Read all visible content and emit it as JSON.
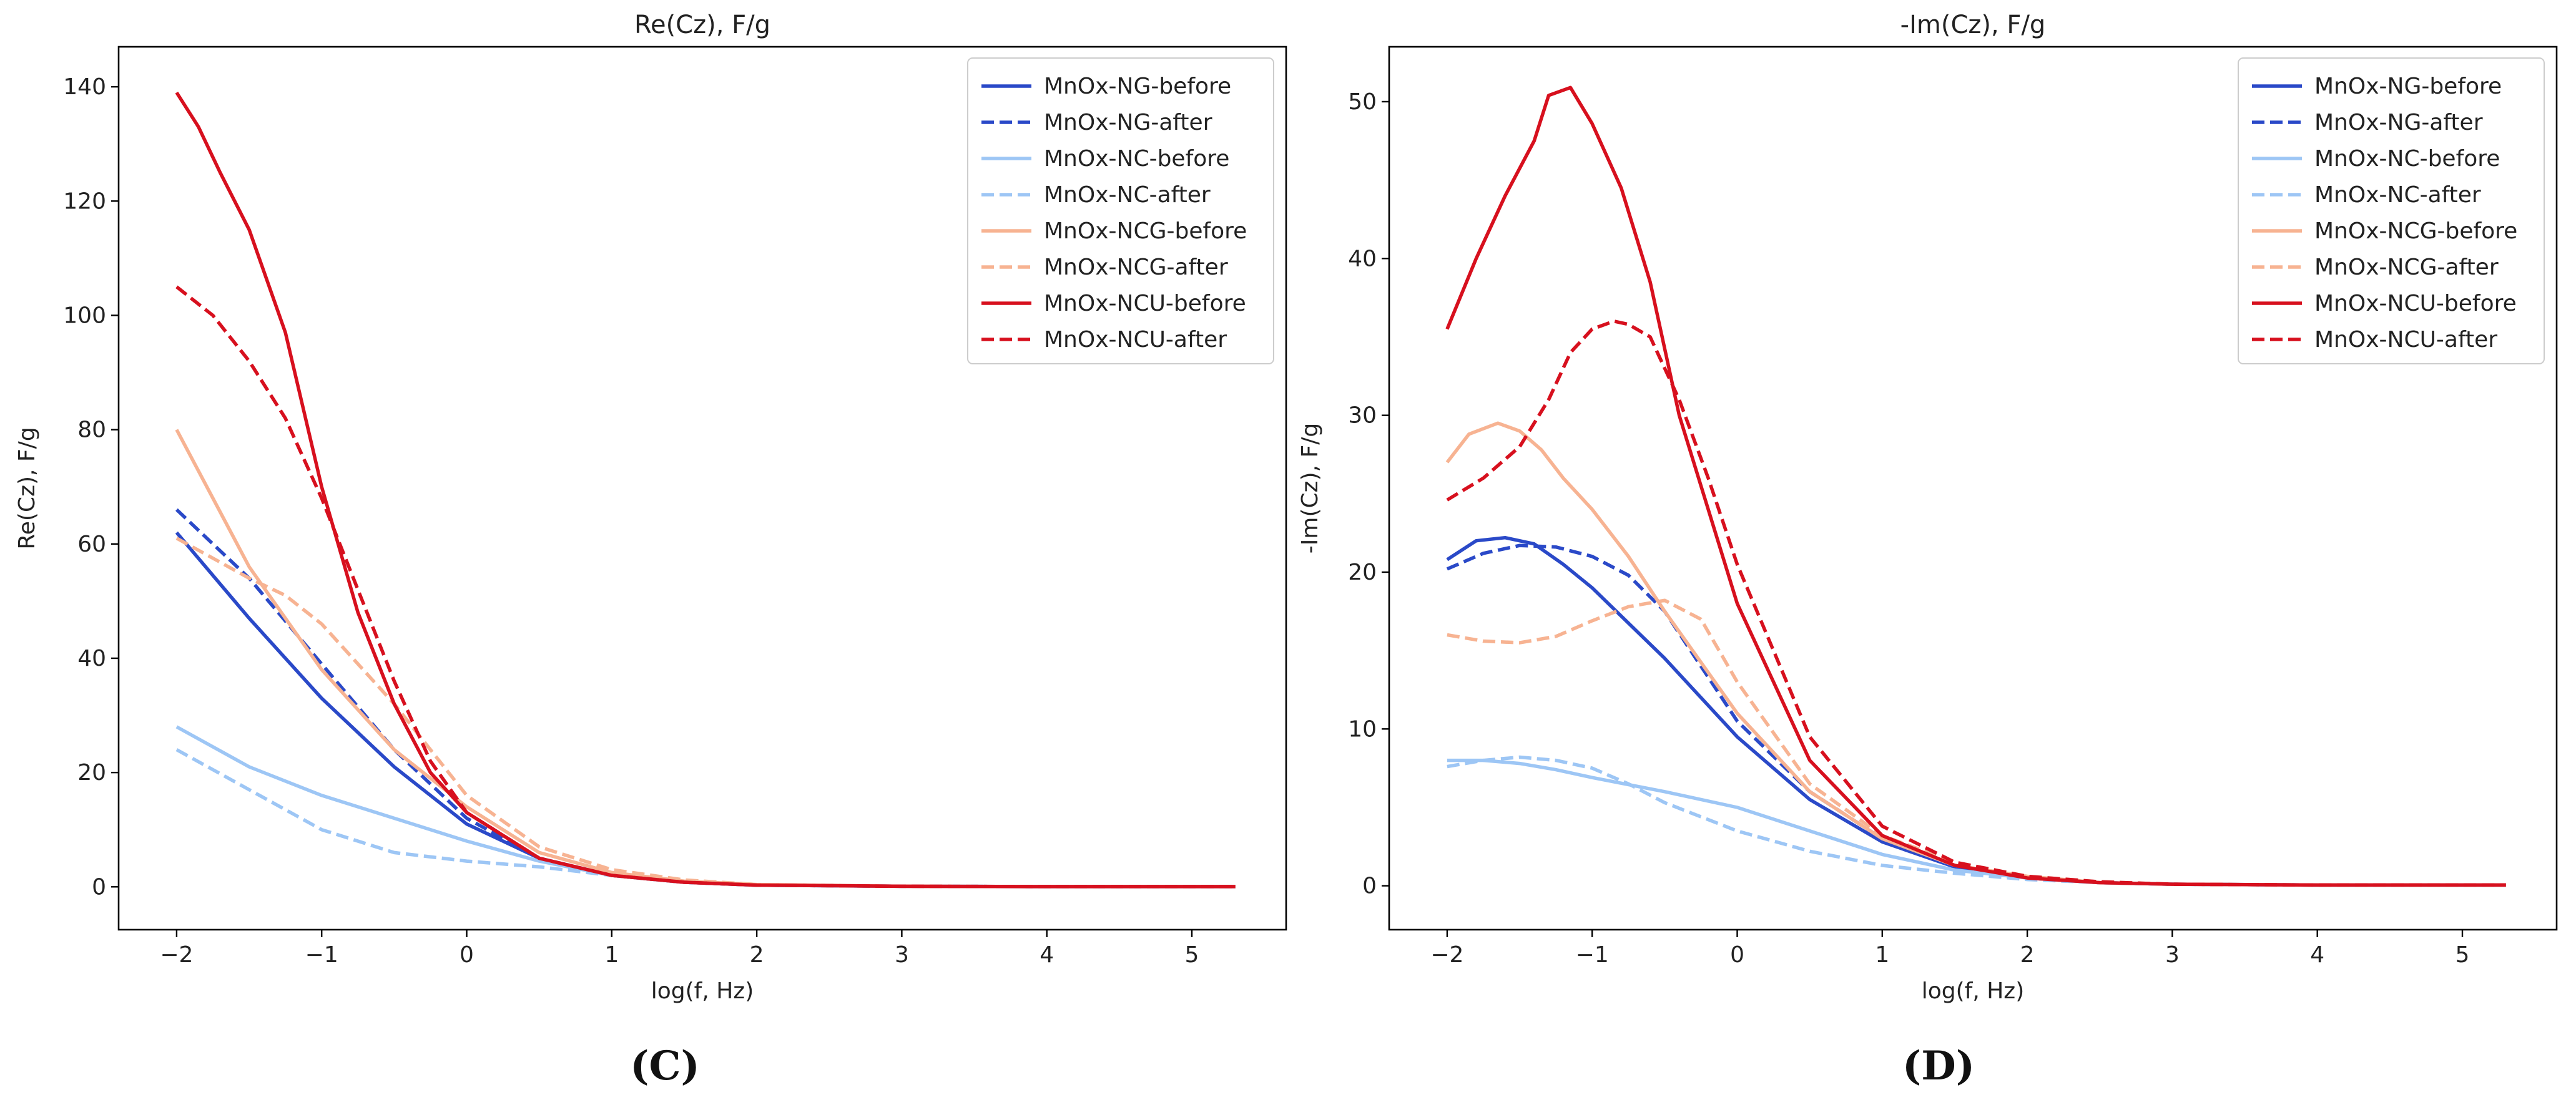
{
  "colors": {
    "NG": "#2a49c8",
    "NC": "#9dc6f5",
    "NCG": "#f7b392",
    "NCU": "#d7101e"
  },
  "legend_labels": [
    "MnOx-NG-before",
    "MnOx-NG-after",
    "MnOx-NC-before",
    "MnOx-NC-after",
    "MnOx-NCG-before",
    "MnOx-NCG-after",
    "MnOx-NCU-before",
    "MnOx-NCU-after"
  ],
  "chart_data": [
    {
      "type": "line",
      "panel_label": "(C)",
      "title": "Re(Cz), F/g",
      "xlabel": "log(f, Hz)",
      "ylabel": "Re(Cz), F/g",
      "xlim": [
        -2.4,
        5.65
      ],
      "ylim": [
        -7.5,
        147
      ],
      "xticks": [
        -2,
        -1,
        0,
        1,
        2,
        3,
        4,
        5
      ],
      "xtick_labels": [
        "−2",
        "−1",
        "0",
        "1",
        "2",
        "3",
        "4",
        "5"
      ],
      "yticks": [
        0,
        20,
        40,
        60,
        80,
        100,
        120,
        140
      ],
      "ytick_labels": [
        "0",
        "20",
        "40",
        "60",
        "80",
        "100",
        "120",
        "140"
      ],
      "legend_position": "top-right",
      "series": [
        {
          "name": "MnOx-NG-before",
          "color_key": "NG",
          "dash": "solid",
          "x": [
            -2,
            -1.5,
            -1,
            -0.5,
            0,
            0.5,
            1,
            1.5,
            2,
            3,
            4,
            5.3
          ],
          "y": [
            62,
            47,
            33,
            21,
            11,
            5,
            2,
            0.8,
            0.3,
            0.1,
            0.05,
            0.05
          ]
        },
        {
          "name": "MnOx-NG-after",
          "color_key": "NG",
          "dash": "dashed",
          "x": [
            -2,
            -1.5,
            -1,
            -0.5,
            0,
            0.5,
            1,
            1.5,
            2,
            3,
            4,
            5.3
          ],
          "y": [
            66,
            54,
            39,
            24,
            12,
            5,
            2,
            0.8,
            0.3,
            0.1,
            0.05,
            0.05
          ]
        },
        {
          "name": "MnOx-NC-before",
          "color_key": "NC",
          "dash": "solid",
          "x": [
            -2,
            -1.5,
            -1,
            -0.5,
            0,
            0.5,
            1,
            1.5,
            2,
            3,
            4,
            5.3
          ],
          "y": [
            28,
            21,
            16,
            12,
            8,
            4.5,
            2,
            0.8,
            0.3,
            0.1,
            0.05,
            0.05
          ]
        },
        {
          "name": "MnOx-NC-after",
          "color_key": "NC",
          "dash": "dashed",
          "x": [
            -2,
            -1.5,
            -1,
            -0.5,
            0,
            0.5,
            1,
            1.5,
            2,
            3,
            4,
            5.3
          ],
          "y": [
            24,
            17,
            10,
            6,
            4.5,
            3.5,
            2,
            0.8,
            0.3,
            0.1,
            0.05,
            0.05
          ]
        },
        {
          "name": "MnOx-NCG-before",
          "color_key": "NCG",
          "dash": "solid",
          "x": [
            -2,
            -1.5,
            -1,
            -0.5,
            0,
            0.5,
            1,
            1.5,
            2,
            3,
            4,
            5.3
          ],
          "y": [
            80,
            56,
            38,
            24,
            14,
            6,
            2.5,
            1,
            0.4,
            0.1,
            0.05,
            0.05
          ]
        },
        {
          "name": "MnOx-NCG-after",
          "color_key": "NCG",
          "dash": "dashed",
          "x": [
            -2,
            -1.5,
            -1.25,
            -1,
            -0.5,
            0,
            0.5,
            1,
            1.5,
            2,
            3,
            4,
            5.3
          ],
          "y": [
            61,
            54,
            51,
            46,
            32,
            16,
            7,
            3,
            1.2,
            0.4,
            0.1,
            0.05,
            0.05
          ]
        },
        {
          "name": "MnOx-NCU-before",
          "color_key": "NCU",
          "dash": "solid",
          "x": [
            -2,
            -1.85,
            -1.7,
            -1.5,
            -1.25,
            -1,
            -0.75,
            -0.5,
            -0.25,
            0,
            0.5,
            1,
            1.5,
            2,
            3,
            4,
            5.3
          ],
          "y": [
            139,
            133,
            125,
            115,
            97,
            70,
            48,
            32,
            20,
            13,
            5,
            2,
            0.8,
            0.3,
            0.1,
            0.05,
            0.05
          ]
        },
        {
          "name": "MnOx-NCU-after",
          "color_key": "NCU",
          "dash": "dashed",
          "x": [
            -2,
            -1.75,
            -1.5,
            -1.25,
            -1,
            -0.75,
            -0.5,
            -0.25,
            0,
            0.5,
            1,
            1.5,
            2,
            3,
            4,
            5.3
          ],
          "y": [
            105,
            100,
            92,
            82,
            68,
            52,
            36,
            22,
            13,
            5,
            2,
            0.8,
            0.3,
            0.1,
            0.05,
            0.05
          ]
        }
      ]
    },
    {
      "type": "line",
      "panel_label": "(D)",
      "title": "-Im(Cz), F/g",
      "xlabel": "log(f, Hz)",
      "ylabel": "-Im(Cz), F/g",
      "xlim": [
        -2.4,
        5.65
      ],
      "ylim": [
        -2.8,
        53.5
      ],
      "xticks": [
        -2,
        -1,
        0,
        1,
        2,
        3,
        4,
        5
      ],
      "xtick_labels": [
        "−2",
        "−1",
        "0",
        "1",
        "2",
        "3",
        "4",
        "5"
      ],
      "yticks": [
        0,
        10,
        20,
        30,
        40,
        50
      ],
      "ytick_labels": [
        "0",
        "10",
        "20",
        "30",
        "40",
        "50"
      ],
      "legend_position": "top-right",
      "series": [
        {
          "name": "MnOx-NG-before",
          "color_key": "NG",
          "dash": "solid",
          "x": [
            -2,
            -1.8,
            -1.6,
            -1.4,
            -1.2,
            -1,
            -0.5,
            0,
            0.5,
            1,
            1.5,
            2,
            2.5,
            3,
            4,
            5.3
          ],
          "y": [
            20.8,
            22,
            22.2,
            21.8,
            20.5,
            19,
            14.5,
            9.5,
            5.5,
            2.8,
            1.2,
            0.5,
            0.2,
            0.1,
            0.05,
            0.05
          ]
        },
        {
          "name": "MnOx-NG-after",
          "color_key": "NG",
          "dash": "dashed",
          "x": [
            -2,
            -1.75,
            -1.5,
            -1.25,
            -1,
            -0.75,
            -0.5,
            0,
            0.5,
            1,
            1.5,
            2,
            2.5,
            3,
            4,
            5.3
          ],
          "y": [
            20.2,
            21.2,
            21.7,
            21.6,
            21,
            19.8,
            17.5,
            10.5,
            6,
            3,
            1.3,
            0.5,
            0.2,
            0.1,
            0.05,
            0.05
          ]
        },
        {
          "name": "MnOx-NC-before",
          "color_key": "NC",
          "dash": "solid",
          "x": [
            -2,
            -1.75,
            -1.5,
            -1.25,
            -1,
            -0.5,
            0,
            0.5,
            1,
            1.5,
            2,
            2.5,
            3,
            4,
            5.3
          ],
          "y": [
            8,
            8,
            7.8,
            7.4,
            6.9,
            6,
            5,
            3.5,
            2,
            1,
            0.5,
            0.2,
            0.1,
            0.05,
            0.05
          ]
        },
        {
          "name": "MnOx-NC-after",
          "color_key": "NC",
          "dash": "dashed",
          "x": [
            -2,
            -1.75,
            -1.5,
            -1.25,
            -1,
            -0.75,
            -0.5,
            0,
            0.5,
            1,
            1.5,
            2,
            2.5,
            3,
            4,
            5.3
          ],
          "y": [
            7.6,
            8,
            8.2,
            8,
            7.5,
            6.5,
            5.3,
            3.5,
            2.2,
            1.3,
            0.8,
            0.4,
            0.2,
            0.1,
            0.05,
            0.05
          ]
        },
        {
          "name": "MnOx-NCG-before",
          "color_key": "NCG",
          "dash": "solid",
          "x": [
            -2,
            -1.85,
            -1.65,
            -1.5,
            -1.35,
            -1.2,
            -1,
            -0.75,
            -0.5,
            0,
            0.5,
            1,
            1.5,
            2,
            2.5,
            3,
            4,
            5.3
          ],
          "y": [
            27,
            28.8,
            29.5,
            29,
            27.8,
            26,
            24,
            21,
            17.5,
            11,
            6,
            3,
            1.3,
            0.6,
            0.2,
            0.1,
            0.05,
            0.05
          ]
        },
        {
          "name": "MnOx-NCG-after",
          "color_key": "NCG",
          "dash": "dashed",
          "x": [
            -2,
            -1.75,
            -1.5,
            -1.25,
            -1,
            -0.75,
            -0.5,
            -0.25,
            0,
            0.5,
            1,
            1.5,
            2,
            2.5,
            3,
            4,
            5.3
          ],
          "y": [
            16,
            15.6,
            15.5,
            15.9,
            16.9,
            17.8,
            18.2,
            17,
            13,
            6.5,
            3.2,
            1.5,
            0.6,
            0.25,
            0.1,
            0.05,
            0.05
          ]
        },
        {
          "name": "MnOx-NCU-before",
          "color_key": "NCU",
          "dash": "solid",
          "x": [
            -2,
            -1.8,
            -1.6,
            -1.4,
            -1.3,
            -1.15,
            -1,
            -0.8,
            -0.6,
            -0.4,
            -0.2,
            0,
            0.5,
            1,
            1.5,
            2,
            2.5,
            3,
            4,
            5.3
          ],
          "y": [
            35.5,
            40,
            44,
            47.5,
            50.4,
            50.9,
            48.6,
            44.5,
            38.5,
            30,
            24,
            18,
            8,
            3.2,
            1.3,
            0.5,
            0.2,
            0.1,
            0.05,
            0.05
          ]
        },
        {
          "name": "MnOx-NCU-after",
          "color_key": "NCU",
          "dash": "dashed",
          "x": [
            -2,
            -1.75,
            -1.5,
            -1.3,
            -1.15,
            -1,
            -0.85,
            -0.75,
            -0.6,
            -0.4,
            -0.2,
            0,
            0.5,
            1,
            1.5,
            2,
            2.5,
            3,
            4,
            5.3
          ],
          "y": [
            24.6,
            26,
            28,
            31,
            34,
            35.5,
            36,
            35.8,
            35,
            31,
            26,
            20.5,
            9.5,
            3.8,
            1.5,
            0.6,
            0.25,
            0.1,
            0.05,
            0.05
          ]
        }
      ]
    }
  ]
}
